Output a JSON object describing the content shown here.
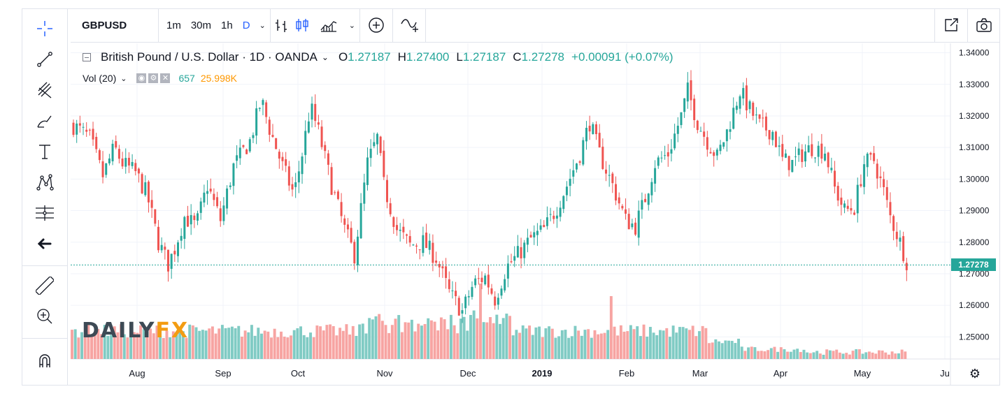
{
  "toolbar": {
    "symbol": "GBPUSD",
    "intervals": [
      "1m",
      "30m",
      "1h",
      "D"
    ],
    "active_interval": "D",
    "icons": [
      "bar-style-icon",
      "candles-icon",
      "compare-icon",
      "add-indicator-icon",
      "alert-icon"
    ]
  },
  "right_toolbar": {
    "icons": [
      "fullscreen-icon",
      "snapshot-icon"
    ]
  },
  "legend": {
    "title": "British Pound / U.S. Dollar · 1D · OANDA",
    "open_label": "O",
    "open": "1.27187",
    "high_label": "H",
    "high": "1.27400",
    "low_label": "L",
    "low": "1.27187",
    "close_label": "C",
    "close": "1.27278",
    "change": "+0.00091 (+0.07%)"
  },
  "volume_legend": {
    "name": "Vol (20)",
    "value1": "657",
    "value2": "25.998K"
  },
  "logo": {
    "part1": "DAILY",
    "part2": "FX"
  },
  "colors": {
    "up": "#26a69a",
    "down": "#ef5350",
    "vol_up": "#80cbc4",
    "vol_down": "#f7a4a2",
    "blue": "#2962ff"
  },
  "chart_data": {
    "type": "candlestick",
    "price_axis": [
      "1.34000",
      "1.33000",
      "1.32000",
      "1.31000",
      "1.30000",
      "1.29000",
      "1.28000",
      "1.27000",
      "1.26000",
      "1.25000"
    ],
    "last_price": "1.27278",
    "time_axis": [
      "Aug",
      "Sep",
      "Oct",
      "Nov",
      "Dec",
      "2019",
      "Feb",
      "Mar",
      "Apr",
      "May",
      "Ju"
    ],
    "ylim": [
      1.243,
      1.343
    ]
  }
}
